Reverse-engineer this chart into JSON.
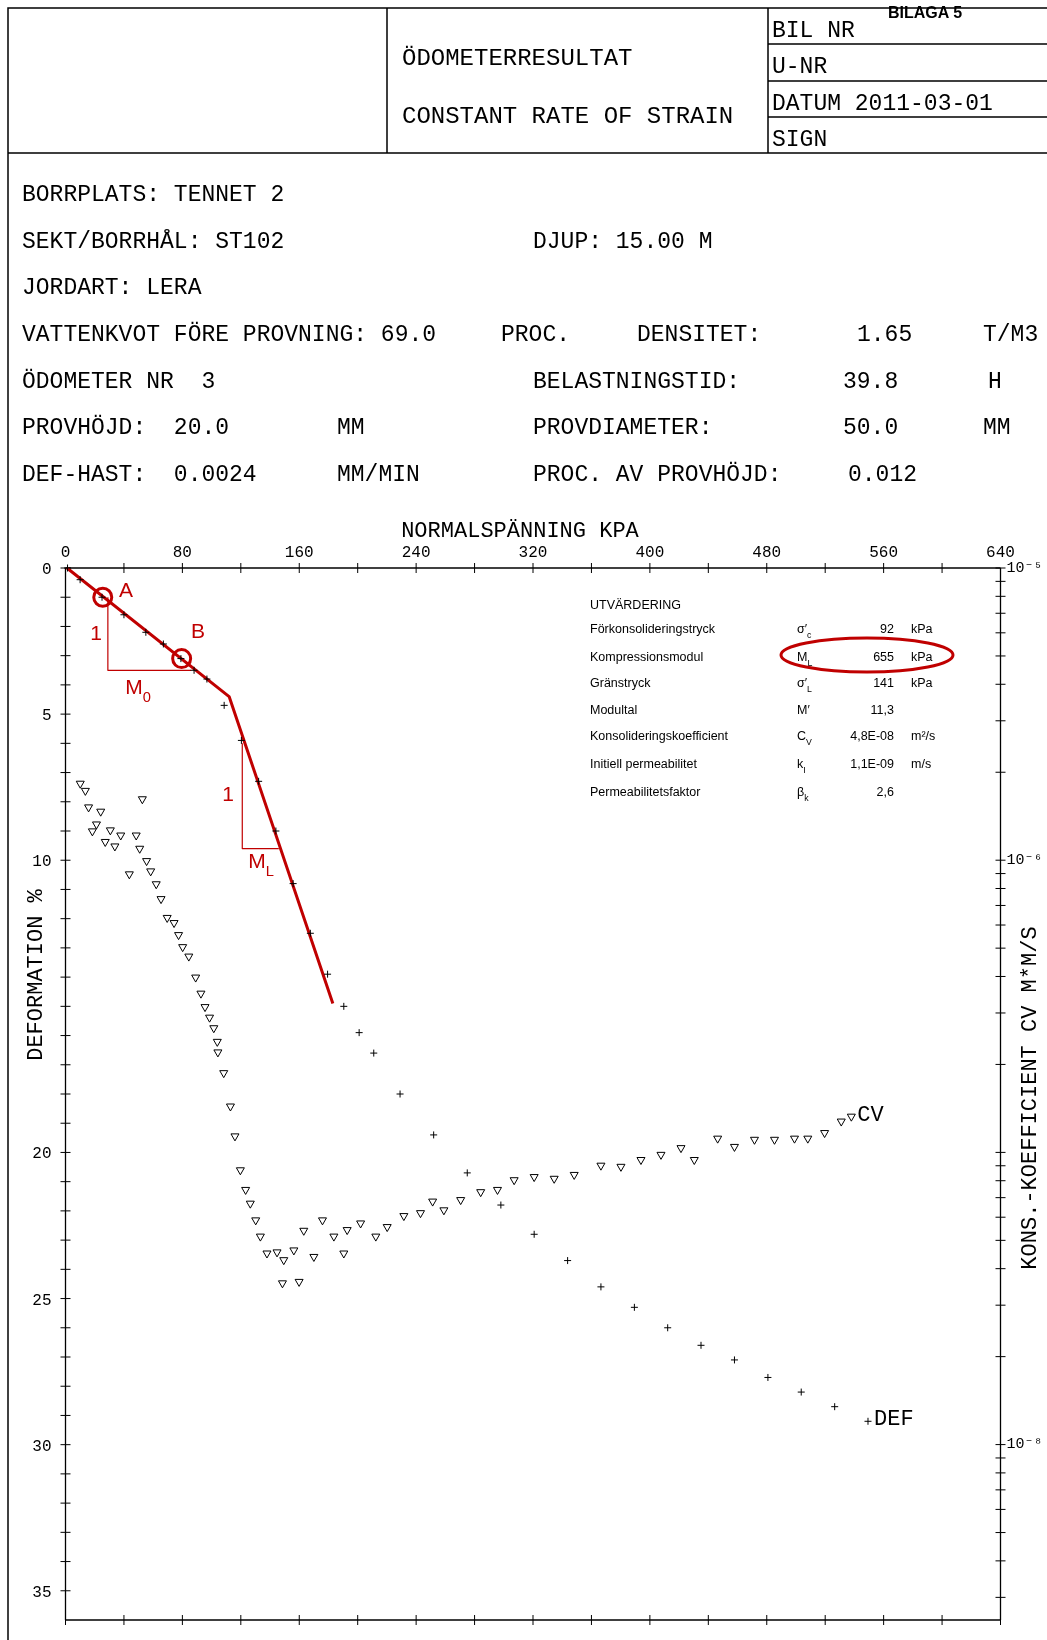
{
  "chart_data": {
    "type": "scatter",
    "title": "ÖDOMETERRESULTAT",
    "subtitle": "CONSTANT RATE OF STRAIN",
    "xlabel": "NORMALSPÄNNING KPA",
    "ylabel": "DEFORMATION %",
    "y2label": "KONS.-KOEFFICIENT CV M*M/S",
    "xlim": [
      0,
      640
    ],
    "ylim": [
      36,
      0
    ],
    "y2lim": [
      2.51e-09,
      1e-05
    ],
    "log": "y2",
    "grid": false,
    "xticks": [
      0,
      {
        "value": 40,
        "label": null
      },
      80,
      {
        "value": 120,
        "label": null
      },
      160,
      {
        "value": 200,
        "label": null
      },
      240,
      {
        "value": 280,
        "label": null
      },
      320,
      {
        "value": 360,
        "label": null
      },
      400,
      {
        "value": 440,
        "label": null
      },
      480,
      {
        "value": 520,
        "label": null
      },
      560,
      {
        "value": 600,
        "label": null
      },
      640
    ],
    "yticks": [
      0,
      {
        "value": 1,
        "label": null
      },
      {
        "value": 2,
        "label": null
      },
      {
        "value": 3,
        "label": null
      },
      {
        "value": 4,
        "label": null
      },
      5,
      {
        "value": 6,
        "label": null
      },
      {
        "value": 7,
        "label": null
      },
      {
        "value": 8,
        "label": null
      },
      {
        "value": 9,
        "label": null
      },
      10,
      {
        "value": 11,
        "label": null
      },
      {
        "value": 12,
        "label": null
      },
      {
        "value": 13,
        "label": null
      },
      {
        "value": 14,
        "label": null
      },
      {
        "value": 15,
        "label": null
      },
      {
        "value": 16,
        "label": null
      },
      {
        "value": 17,
        "label": null
      },
      {
        "value": 18,
        "label": null
      },
      {
        "value": 19,
        "label": null
      },
      20,
      {
        "value": 21,
        "label": null
      },
      {
        "value": 22,
        "label": null
      },
      {
        "value": 23,
        "label": null
      },
      {
        "value": 24,
        "label": null
      },
      25,
      {
        "value": 26,
        "label": null
      },
      {
        "value": 27,
        "label": null
      },
      {
        "value": 28,
        "label": null
      },
      {
        "value": 29,
        "label": null
      },
      30,
      {
        "value": 31,
        "label": null
      },
      {
        "value": 32,
        "label": null
      },
      {
        "value": 33,
        "label": null
      },
      {
        "value": 34,
        "label": null
      },
      35
    ],
    "y2ticks": [
      {
        "value": 1e-05,
        "label": "10⁻⁵"
      },
      {
        "value": 9e-06,
        "label": null
      },
      {
        "value": 8e-06,
        "label": null
      },
      {
        "value": 7e-06,
        "label": null
      },
      {
        "value": 6e-06,
        "label": null
      },
      {
        "value": 5e-06,
        "label": null
      },
      {
        "value": 4e-06,
        "label": null
      },
      {
        "value": 3e-06,
        "label": null
      },
      {
        "value": 2e-06,
        "label": null
      },
      {
        "value": 1e-06,
        "label": "10⁻⁶"
      },
      {
        "value": 9e-07,
        "label": null
      },
      {
        "value": 8e-07,
        "label": null
      },
      {
        "value": 7e-07,
        "label": null
      },
      {
        "value": 6e-07,
        "label": null
      },
      {
        "value": 5e-07,
        "label": null
      },
      {
        "value": 4e-07,
        "label": null
      },
      {
        "value": 3e-07,
        "label": null
      },
      {
        "value": 2e-07,
        "label": null
      },
      {
        "value": 1e-07,
        "label": null
      },
      {
        "value": 9e-08,
        "label": null
      },
      {
        "value": 8e-08,
        "label": null
      },
      {
        "value": 7e-08,
        "label": null
      },
      {
        "value": 6e-08,
        "label": null
      },
      {
        "value": 5e-08,
        "label": null
      },
      {
        "value": 4e-08,
        "label": null
      },
      {
        "value": 3e-08,
        "label": null
      },
      {
        "value": 2e-08,
        "label": null
      },
      {
        "value": 1e-08,
        "label": "10⁻⁸"
      },
      {
        "value": 9e-09,
        "label": null
      },
      {
        "value": 8e-09,
        "label": null
      },
      {
        "value": 7e-09,
        "label": null
      },
      {
        "value": 6e-09,
        "label": null
      },
      {
        "value": 5e-09,
        "label": null
      },
      {
        "value": 4e-09,
        "label": null
      },
      {
        "value": 3e-09,
        "label": null
      }
    ],
    "series": [
      {
        "name": "DEF",
        "marker": "cross",
        "color": "#000000",
        "x": [
          1.4,
          10,
          25,
          40,
          55,
          67,
          79,
          88,
          96.8,
          108.6,
          120.4,
          132.2,
          144,
          155.8,
          167.6,
          179.4,
          190.5,
          201,
          211,
          229,
          252,
          275,
          298,
          320.8,
          343.7,
          366.5,
          389.4,
          412.2,
          435,
          457.9,
          480.8,
          503.6,
          526.5,
          549.3
        ],
        "values": [
          0,
          0.4,
          1.0,
          1.6,
          2.2,
          2.6,
          3.1,
          3.5,
          3.8,
          4.7,
          5.9,
          7.3,
          9.0,
          10.8,
          12.5,
          13.9,
          15.0,
          15.9,
          16.6,
          18.0,
          19.4,
          20.7,
          21.8,
          22.8,
          23.7,
          24.6,
          25.3,
          26.0,
          26.6,
          27.1,
          27.7,
          28.2,
          28.7,
          29.2
        ]
      },
      {
        "name": "CV",
        "marker": "triangle",
        "axis": "y2",
        "color": "#000000",
        "x": [
          10.1,
          13.6,
          15.8,
          24.1,
          18.4,
          21.2,
          30.7,
          27.2,
          33.8,
          37.8,
          48.4,
          52.6,
          43.7,
          50.8,
          55.5,
          58.3,
          62.1,
          65.4,
          69.6,
          74.3,
          77.4,
          80.2,
          84.4,
          89.1,
          92.7,
          95.5,
          98.6,
          101.5,
          103.9,
          104.3,
          108.3,
          112.9,
          116,
          119.7,
          123.3,
          126.5,
          130.2,
          133.4,
          137.9,
          144.8,
          149.4,
          148.5,
          156.3,
          159.9,
          163.1,
          170,
          175.9,
          183.7,
          190.5,
          192.8,
          202,
          212.4,
          220.2,
          231.6,
          243,
          251.3,
          259,
          270.5,
          284.2,
          295.7,
          307.1,
          320.8,
          334.5,
          348.2,
          366.5,
          380.2,
          393.9,
          407.6,
          421.3,
          430.4,
          446.4,
          457.9,
          471.6,
          485.3,
          499,
          508.1,
          519.6,
          531,
          537.9
        ],
        "values": [
          1.82e-06,
          1.72e-06,
          1.51e-06,
          1.46e-06,
          1.25e-06,
          1.32e-06,
          1.26e-06,
          1.15e-06,
          1.11e-06,
          1.21e-06,
          1.21e-06,
          1.61e-06,
          8.91e-07,
          1.09e-06,
          9.89e-07,
          9.12e-07,
          8.24e-07,
          7.33e-07,
          6.32e-07,
          6.07e-07,
          5.52e-07,
          5.02e-07,
          4.66e-07,
          3.95e-07,
          3.48e-07,
          3.13e-07,
          2.88e-07,
          2.65e-07,
          2.38e-07,
          2.19e-07,
          1.86e-07,
          1.43e-07,
          1.13e-07,
          8.65e-08,
          7.41e-08,
          6.65e-08,
          5.83e-08,
          5.13e-08,
          4.49e-08,
          4.53e-08,
          4.26e-08,
          3.55e-08,
          4.6e-08,
          3.59e-08,
          5.37e-08,
          4.37e-08,
          5.83e-08,
          5.13e-08,
          4.49e-08,
          5.4e-08,
          5.69e-08,
          5.13e-08,
          5.53e-08,
          6.03e-08,
          6.17e-08,
          6.76e-08,
          6.31e-08,
          6.84e-08,
          7.28e-08,
          7.41e-08,
          8e-08,
          8.2e-08,
          8.09e-08,
          8.34e-08,
          8.97e-08,
          8.89e-08,
          9.38e-08,
          9.77e-08,
          1.03e-07,
          9.38e-08,
          1.11e-07,
          1.04e-07,
          1.1e-07,
          1.1e-07,
          1.11e-07,
          1.11e-07,
          1.16e-07,
          1.27e-07,
          1.32e-07
        ]
      },
      {
        "type": "line",
        "color": "#c00000",
        "x": [
          1,
          112,
          183
        ],
        "values": [
          0,
          4.4,
          14.9
        ]
      },
      {
        "type": "line",
        "color": "#c00000",
        "x": [
          29,
          29,
          86
        ],
        "values": [
          1.0,
          3.5,
          3.5
        ]
      },
      {
        "type": "line",
        "color": "#c00000",
        "x": [
          121,
          121,
          146
        ],
        "values": [
          6.0,
          9.6,
          9.6
        ]
      },
      {
        "marker": "circle",
        "color": "#c00000",
        "x": [
          25.5,
          79.5
        ],
        "values": [
          1.0,
          3.1
        ]
      }
    ],
    "annotations": [
      "BILAGA 5",
      "BIL NR",
      "U-NR",
      "DATUM 2011-03-01",
      "SIGN",
      "BORRPLATS: TENNET 2",
      "SEKT/BORRHÅL: ST102",
      "DJUP: 15.00 M",
      "JORDART: LERA",
      "VATTENKVOT FÖRE PROVNING: 69.0",
      "PROC.",
      "DENSITET:",
      "1.65",
      "T/M3",
      "ÖDOMETER NR  3",
      "BELASTNINGSTID:",
      "39.8",
      "H",
      "PROVHÖJD:  20.0",
      "MM",
      "PROVDIAMETER:",
      "50.0",
      "MM",
      "DEF-HAST:  0.0024",
      "MM/MIN",
      "PROC. AV PROVHÖJD:",
      "0.012",
      "UTVÄRDERING",
      "Förkonsolideringstryck",
      "σ′$_{c}$",
      "92",
      "kPa",
      "Kompressionsmodul",
      "M$_{L}$",
      "655",
      "kPa",
      "Gränstryck",
      "σ′$_{L}$",
      "141",
      "kPa",
      "Modultal",
      "M′",
      "11,3",
      "Konsolideringskoefficient",
      "C$_{V}$",
      "4,8E-08",
      "m²/s",
      "Initiell permeabilitet",
      "k$_{I}$",
      "1,1E-09",
      "m/s",
      "Permeabilitetsfaktor",
      "β$_{k}$",
      "2,6",
      "A",
      "B",
      "1",
      "M$_{0}$",
      "1",
      "M$_{L}$"
    ]
  }
}
